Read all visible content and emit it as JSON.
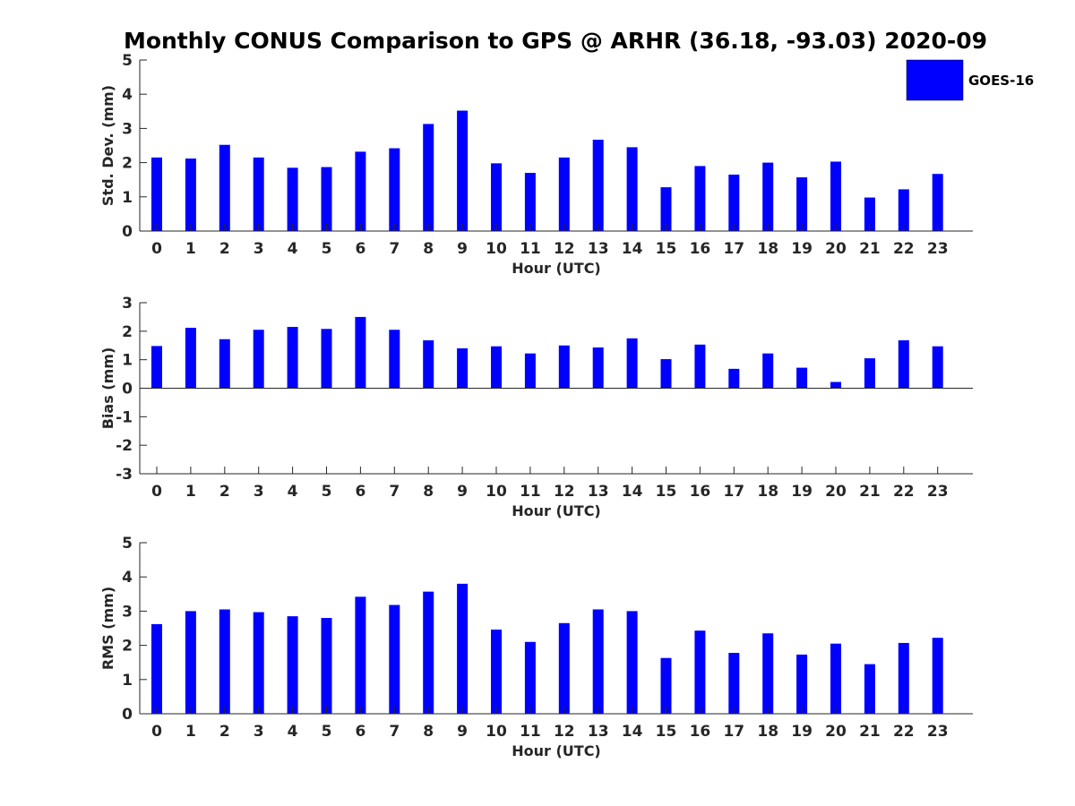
{
  "title": "Monthly CONUS Comparison to GPS @ ARHR (36.18, -93.03) 2020-09",
  "legend": {
    "label": "GOES-16",
    "color": "#0000ff"
  },
  "chart_data": [
    {
      "type": "bar",
      "categories": [
        "0",
        "1",
        "2",
        "3",
        "4",
        "5",
        "6",
        "7",
        "8",
        "9",
        "10",
        "11",
        "12",
        "13",
        "14",
        "15",
        "16",
        "17",
        "18",
        "19",
        "20",
        "21",
        "22",
        "23"
      ],
      "series": [
        {
          "name": "GOES-16",
          "values": [
            2.15,
            2.12,
            2.52,
            2.15,
            1.85,
            1.87,
            2.32,
            2.42,
            3.13,
            3.52,
            1.98,
            1.7,
            2.15,
            2.67,
            2.45,
            1.28,
            1.9,
            1.65,
            2.0,
            1.57,
            2.03,
            0.98,
            1.22,
            1.67
          ]
        }
      ],
      "xlabel": "Hour (UTC)",
      "ylabel": "Std. Dev. (mm)",
      "ylim": [
        0,
        5
      ],
      "yticks": [
        "0",
        "1",
        "2",
        "3",
        "4",
        "5"
      ]
    },
    {
      "type": "bar",
      "categories": [
        "0",
        "1",
        "2",
        "3",
        "4",
        "5",
        "6",
        "7",
        "8",
        "9",
        "10",
        "11",
        "12",
        "13",
        "14",
        "15",
        "16",
        "17",
        "18",
        "19",
        "20",
        "21",
        "22",
        "23"
      ],
      "series": [
        {
          "name": "GOES-16",
          "values": [
            1.48,
            2.12,
            1.72,
            2.05,
            2.15,
            2.08,
            2.5,
            2.05,
            1.68,
            1.4,
            1.47,
            1.22,
            1.5,
            1.43,
            1.75,
            1.02,
            1.53,
            0.68,
            1.22,
            0.72,
            0.22,
            1.05,
            1.68,
            1.47
          ]
        }
      ],
      "xlabel": "Hour (UTC)",
      "ylabel": "Bias (mm)",
      "ylim": [
        -3,
        3
      ],
      "yticks": [
        "-3",
        "-2",
        "-1",
        "0",
        "1",
        "2",
        "3"
      ]
    },
    {
      "type": "bar",
      "categories": [
        "0",
        "1",
        "2",
        "3",
        "4",
        "5",
        "6",
        "7",
        "8",
        "9",
        "10",
        "11",
        "12",
        "13",
        "14",
        "15",
        "16",
        "17",
        "18",
        "19",
        "20",
        "21",
        "22",
        "23"
      ],
      "series": [
        {
          "name": "GOES-16",
          "values": [
            2.62,
            3.0,
            3.05,
            2.97,
            2.85,
            2.8,
            3.42,
            3.18,
            3.57,
            3.8,
            2.46,
            2.1,
            2.65,
            3.05,
            3.0,
            1.63,
            2.43,
            1.78,
            2.35,
            1.73,
            2.05,
            1.45,
            2.07,
            2.22
          ]
        }
      ],
      "xlabel": "Hour (UTC)",
      "ylabel": "RMS (mm)",
      "ylim": [
        0,
        5
      ],
      "yticks": [
        "0",
        "1",
        "2",
        "3",
        "4",
        "5"
      ]
    }
  ]
}
